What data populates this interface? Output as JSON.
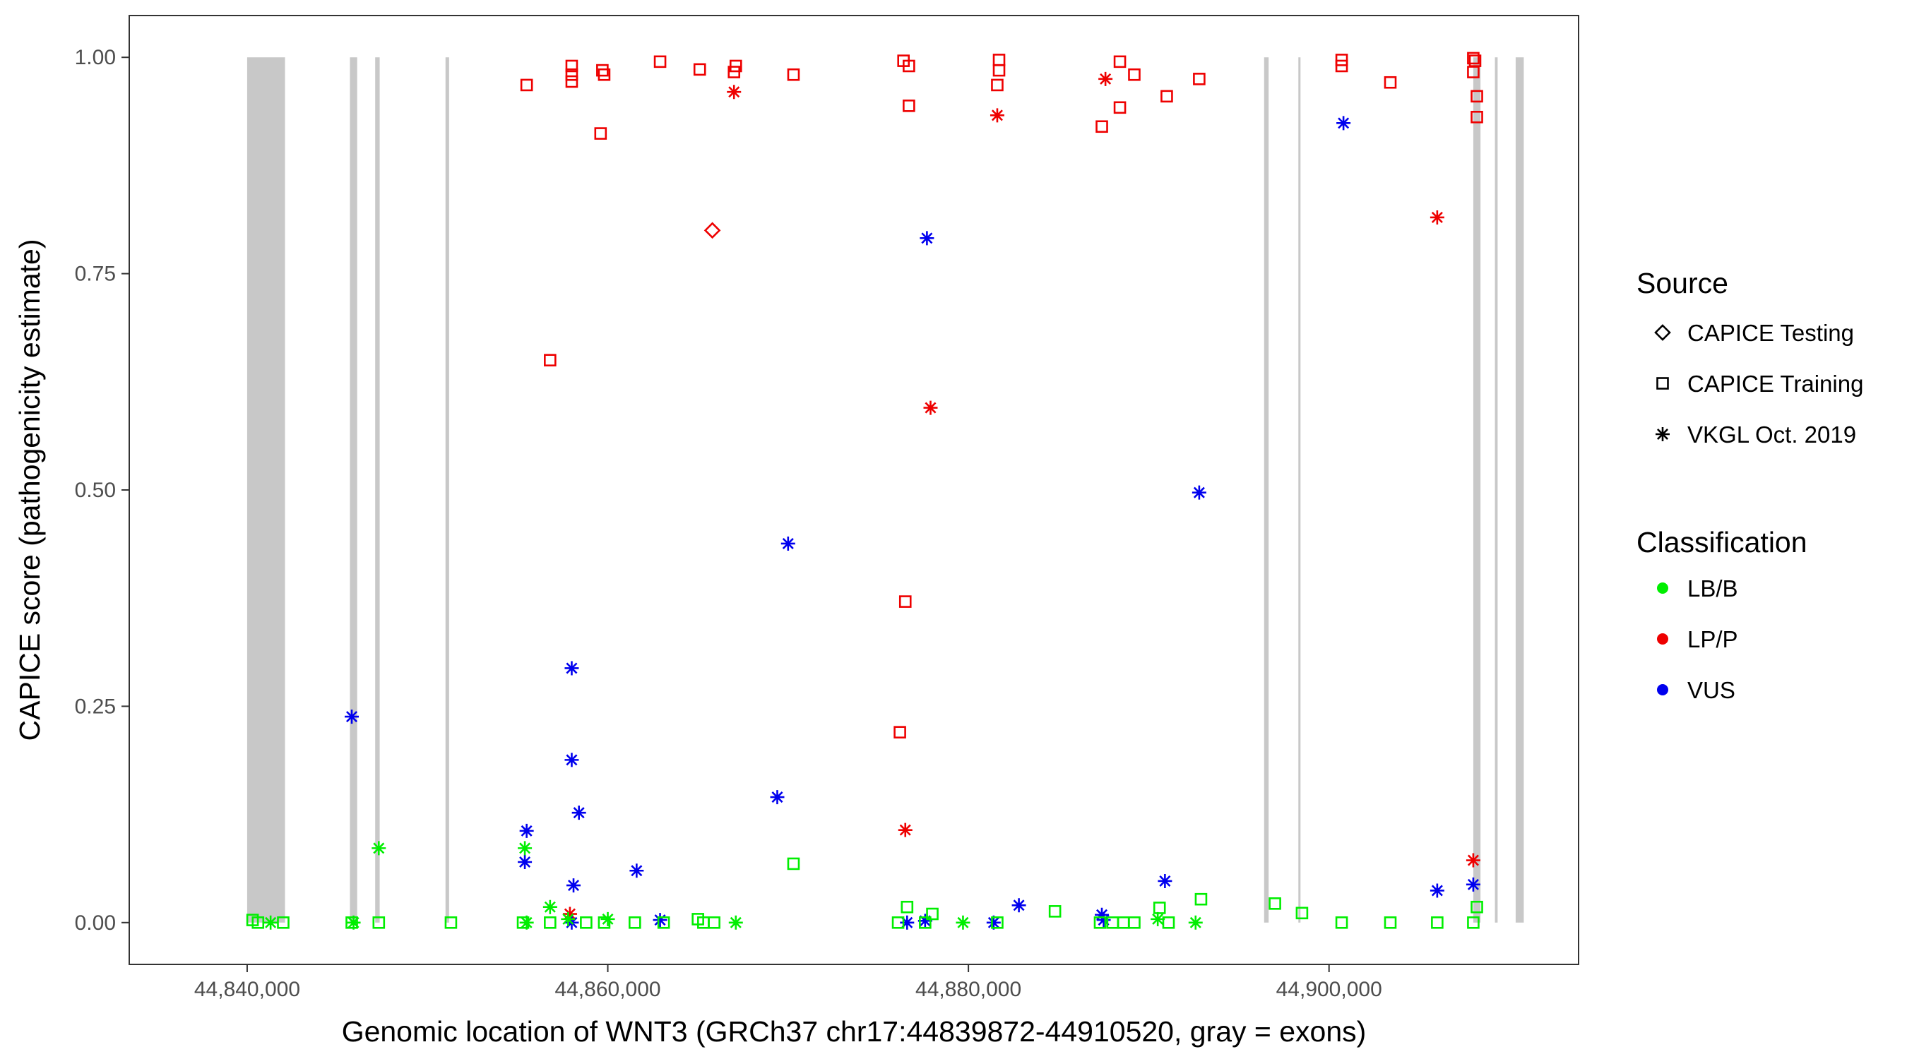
{
  "chart_data": {
    "type": "scatter",
    "title": "",
    "xlabel": "Genomic location of WNT3 (GRCh37 chr17:44839872-44910520, gray = exons)",
    "ylabel": "CAPICE score (pathogenicity estimate)",
    "xlim": [
      44833500,
      44913800
    ],
    "ylim": [
      -0.0475,
      1.0475
    ],
    "x_ticks": [
      44840000,
      44860000,
      44880000,
      44900000
    ],
    "x_tick_labels": [
      "44,840,000",
      "44,860,000",
      "44,880,000",
      "44,900,000"
    ],
    "y_ticks": [
      0,
      0.25,
      0.5,
      0.75,
      1.0
    ],
    "y_tick_labels": [
      "0.00",
      "0.25",
      "0.50",
      "0.75",
      "1.00"
    ],
    "grid": false,
    "exon_color": "#c8c8c8",
    "exons": [
      {
        "start": 44840000,
        "end": 44842100
      },
      {
        "start": 44845700,
        "end": 44846100
      },
      {
        "start": 44847100,
        "end": 44847350
      },
      {
        "start": 44851000,
        "end": 44851200
      },
      {
        "start": 44896400,
        "end": 44896650
      },
      {
        "start": 44898300,
        "end": 44898400
      },
      {
        "start": 44908000,
        "end": 44908400
      },
      {
        "start": 44909200,
        "end": 44909350
      },
      {
        "start": 44910350,
        "end": 44910800
      }
    ],
    "legend": {
      "placement": "right",
      "source_title": "Source",
      "source_items": [
        {
          "label": "CAPICE Testing",
          "shape": "diamond"
        },
        {
          "label": "CAPICE Training",
          "shape": "square"
        },
        {
          "label": "VKGL Oct. 2019",
          "shape": "asterisk"
        }
      ],
      "classification_title": "Classification",
      "classification_items": [
        {
          "label": "LB/B",
          "color": "#00ee00"
        },
        {
          "label": "LP/P",
          "color": "#ee0000"
        },
        {
          "label": "VUS",
          "color": "#0000ee"
        }
      ]
    },
    "series": [
      {
        "classification": "LP/P",
        "color": "#ee0000",
        "points": [
          {
            "x": 44855500,
            "y": 0.968,
            "shape": "square"
          },
          {
            "x": 44858000,
            "y": 0.99,
            "shape": "square"
          },
          {
            "x": 44858000,
            "y": 0.98,
            "shape": "square"
          },
          {
            "x": 44858000,
            "y": 0.972,
            "shape": "square"
          },
          {
            "x": 44859700,
            "y": 0.985,
            "shape": "square"
          },
          {
            "x": 44859800,
            "y": 0.98,
            "shape": "square"
          },
          {
            "x": 44859600,
            "y": 0.912,
            "shape": "square"
          },
          {
            "x": 44862900,
            "y": 0.995,
            "shape": "square"
          },
          {
            "x": 44865100,
            "y": 0.986,
            "shape": "square"
          },
          {
            "x": 44867100,
            "y": 0.99,
            "shape": "square"
          },
          {
            "x": 44867000,
            "y": 0.983,
            "shape": "square"
          },
          {
            "x": 44867000,
            "y": 0.96,
            "shape": "asterisk"
          },
          {
            "x": 44870300,
            "y": 0.98,
            "shape": "square"
          },
          {
            "x": 44876400,
            "y": 0.996,
            "shape": "square"
          },
          {
            "x": 44876700,
            "y": 0.99,
            "shape": "square"
          },
          {
            "x": 44876700,
            "y": 0.944,
            "shape": "square"
          },
          {
            "x": 44881700,
            "y": 0.997,
            "shape": "square"
          },
          {
            "x": 44881700,
            "y": 0.985,
            "shape": "square"
          },
          {
            "x": 44881600,
            "y": 0.968,
            "shape": "square"
          },
          {
            "x": 44881600,
            "y": 0.933,
            "shape": "asterisk"
          },
          {
            "x": 44887400,
            "y": 0.92,
            "shape": "square"
          },
          {
            "x": 44887600,
            "y": 0.975,
            "shape": "asterisk"
          },
          {
            "x": 44888400,
            "y": 0.995,
            "shape": "square"
          },
          {
            "x": 44888400,
            "y": 0.942,
            "shape": "square"
          },
          {
            "x": 44889200,
            "y": 0.98,
            "shape": "square"
          },
          {
            "x": 44891000,
            "y": 0.955,
            "shape": "square"
          },
          {
            "x": 44892800,
            "y": 0.975,
            "shape": "square"
          },
          {
            "x": 44900700,
            "y": 0.997,
            "shape": "square"
          },
          {
            "x": 44900700,
            "y": 0.99,
            "shape": "square"
          },
          {
            "x": 44903400,
            "y": 0.971,
            "shape": "square"
          },
          {
            "x": 44908000,
            "y": 0.999,
            "shape": "square"
          },
          {
            "x": 44908100,
            "y": 0.996,
            "shape": "square"
          },
          {
            "x": 44908000,
            "y": 0.983,
            "shape": "square"
          },
          {
            "x": 44908200,
            "y": 0.955,
            "shape": "square"
          },
          {
            "x": 44908200,
            "y": 0.931,
            "shape": "square"
          },
          {
            "x": 44865800,
            "y": 0.8,
            "shape": "diamond"
          },
          {
            "x": 44906000,
            "y": 0.815,
            "shape": "asterisk"
          },
          {
            "x": 44856800,
            "y": 0.65,
            "shape": "square"
          },
          {
            "x": 44877900,
            "y": 0.595,
            "shape": "asterisk"
          },
          {
            "x": 44876500,
            "y": 0.371,
            "shape": "square"
          },
          {
            "x": 44876200,
            "y": 0.22,
            "shape": "square"
          },
          {
            "x": 44876500,
            "y": 0.107,
            "shape": "asterisk"
          },
          {
            "x": 44908000,
            "y": 0.072,
            "shape": "asterisk"
          },
          {
            "x": 44857900,
            "y": 0.01,
            "shape": "asterisk"
          }
        ]
      },
      {
        "classification": "VUS",
        "color": "#0000ee",
        "points": [
          {
            "x": 44900800,
            "y": 0.924,
            "shape": "asterisk"
          },
          {
            "x": 44877700,
            "y": 0.791,
            "shape": "asterisk"
          },
          {
            "x": 44892800,
            "y": 0.497,
            "shape": "asterisk"
          },
          {
            "x": 44870000,
            "y": 0.438,
            "shape": "asterisk"
          },
          {
            "x": 44858000,
            "y": 0.294,
            "shape": "asterisk"
          },
          {
            "x": 44845800,
            "y": 0.238,
            "shape": "asterisk"
          },
          {
            "x": 44858000,
            "y": 0.188,
            "shape": "asterisk"
          },
          {
            "x": 44869400,
            "y": 0.145,
            "shape": "asterisk"
          },
          {
            "x": 44858400,
            "y": 0.127,
            "shape": "asterisk"
          },
          {
            "x": 44855500,
            "y": 0.106,
            "shape": "asterisk"
          },
          {
            "x": 44855400,
            "y": 0.07,
            "shape": "asterisk"
          },
          {
            "x": 44861600,
            "y": 0.06,
            "shape": "asterisk"
          },
          {
            "x": 44890900,
            "y": 0.048,
            "shape": "asterisk"
          },
          {
            "x": 44908000,
            "y": 0.044,
            "shape": "asterisk"
          },
          {
            "x": 44858100,
            "y": 0.043,
            "shape": "asterisk"
          },
          {
            "x": 44906000,
            "y": 0.037,
            "shape": "asterisk"
          },
          {
            "x": 44882800,
            "y": 0.02,
            "shape": "asterisk"
          },
          {
            "x": 44887400,
            "y": 0.009,
            "shape": "asterisk"
          },
          {
            "x": 44887500,
            "y": 0.003,
            "shape": "asterisk"
          },
          {
            "x": 44862900,
            "y": 0.003,
            "shape": "asterisk"
          },
          {
            "x": 44877600,
            "y": 0.002,
            "shape": "asterisk"
          },
          {
            "x": 44881400,
            "y": 0.0,
            "shape": "asterisk"
          },
          {
            "x": 44876600,
            "y": 0.0,
            "shape": "asterisk"
          },
          {
            "x": 44858000,
            "y": 0.0,
            "shape": "asterisk"
          }
        ]
      },
      {
        "classification": "LB/B",
        "color": "#00ee00",
        "points": [
          {
            "x": 44847300,
            "y": 0.086,
            "shape": "asterisk"
          },
          {
            "x": 44855400,
            "y": 0.086,
            "shape": "asterisk"
          },
          {
            "x": 44870300,
            "y": 0.068,
            "shape": "square"
          },
          {
            "x": 44892900,
            "y": 0.027,
            "shape": "square"
          },
          {
            "x": 44897000,
            "y": 0.022,
            "shape": "square"
          },
          {
            "x": 44856800,
            "y": 0.018,
            "shape": "asterisk"
          },
          {
            "x": 44876600,
            "y": 0.018,
            "shape": "square"
          },
          {
            "x": 44908200,
            "y": 0.018,
            "shape": "square"
          },
          {
            "x": 44890600,
            "y": 0.017,
            "shape": "square"
          },
          {
            "x": 44884800,
            "y": 0.013,
            "shape": "square"
          },
          {
            "x": 44898500,
            "y": 0.011,
            "shape": "square"
          },
          {
            "x": 44878000,
            "y": 0.01,
            "shape": "square"
          },
          {
            "x": 44840300,
            "y": 0.003,
            "shape": "square"
          },
          {
            "x": 44840600,
            "y": 0.0,
            "shape": "square"
          },
          {
            "x": 44841300,
            "y": 0.0,
            "shape": "asterisk"
          },
          {
            "x": 44842000,
            "y": 0.0,
            "shape": "square"
          },
          {
            "x": 44845800,
            "y": 0.0,
            "shape": "square"
          },
          {
            "x": 44845900,
            "y": 0.0,
            "shape": "asterisk"
          },
          {
            "x": 44847300,
            "y": 0.0,
            "shape": "square"
          },
          {
            "x": 44851300,
            "y": 0.0,
            "shape": "square"
          },
          {
            "x": 44855300,
            "y": 0.0,
            "shape": "square"
          },
          {
            "x": 44855500,
            "y": 0.0,
            "shape": "asterisk"
          },
          {
            "x": 44856800,
            "y": 0.0,
            "shape": "square"
          },
          {
            "x": 44857800,
            "y": 0.004,
            "shape": "asterisk"
          },
          {
            "x": 44858800,
            "y": 0.0,
            "shape": "square"
          },
          {
            "x": 44859800,
            "y": 0.0,
            "shape": "square"
          },
          {
            "x": 44860000,
            "y": 0.004,
            "shape": "asterisk"
          },
          {
            "x": 44861500,
            "y": 0.0,
            "shape": "square"
          },
          {
            "x": 44863100,
            "y": 0.0,
            "shape": "square"
          },
          {
            "x": 44865000,
            "y": 0.004,
            "shape": "square"
          },
          {
            "x": 44865300,
            "y": 0.0,
            "shape": "square"
          },
          {
            "x": 44865900,
            "y": 0.0,
            "shape": "square"
          },
          {
            "x": 44867100,
            "y": 0.0,
            "shape": "asterisk"
          },
          {
            "x": 44876100,
            "y": 0.0,
            "shape": "square"
          },
          {
            "x": 44877600,
            "y": 0.0,
            "shape": "square"
          },
          {
            "x": 44879700,
            "y": 0.0,
            "shape": "asterisk"
          },
          {
            "x": 44881600,
            "y": 0.0,
            "shape": "square"
          },
          {
            "x": 44887300,
            "y": 0.0,
            "shape": "square"
          },
          {
            "x": 44888000,
            "y": 0.0,
            "shape": "square"
          },
          {
            "x": 44888600,
            "y": 0.0,
            "shape": "square"
          },
          {
            "x": 44889200,
            "y": 0.0,
            "shape": "square"
          },
          {
            "x": 44890500,
            "y": 0.004,
            "shape": "asterisk"
          },
          {
            "x": 44891100,
            "y": 0.0,
            "shape": "square"
          },
          {
            "x": 44892600,
            "y": 0.0,
            "shape": "asterisk"
          },
          {
            "x": 44900700,
            "y": 0.0,
            "shape": "square"
          },
          {
            "x": 44903400,
            "y": 0.0,
            "shape": "square"
          },
          {
            "x": 44906000,
            "y": 0.0,
            "shape": "square"
          },
          {
            "x": 44908000,
            "y": 0.0,
            "shape": "square"
          }
        ]
      }
    ]
  }
}
